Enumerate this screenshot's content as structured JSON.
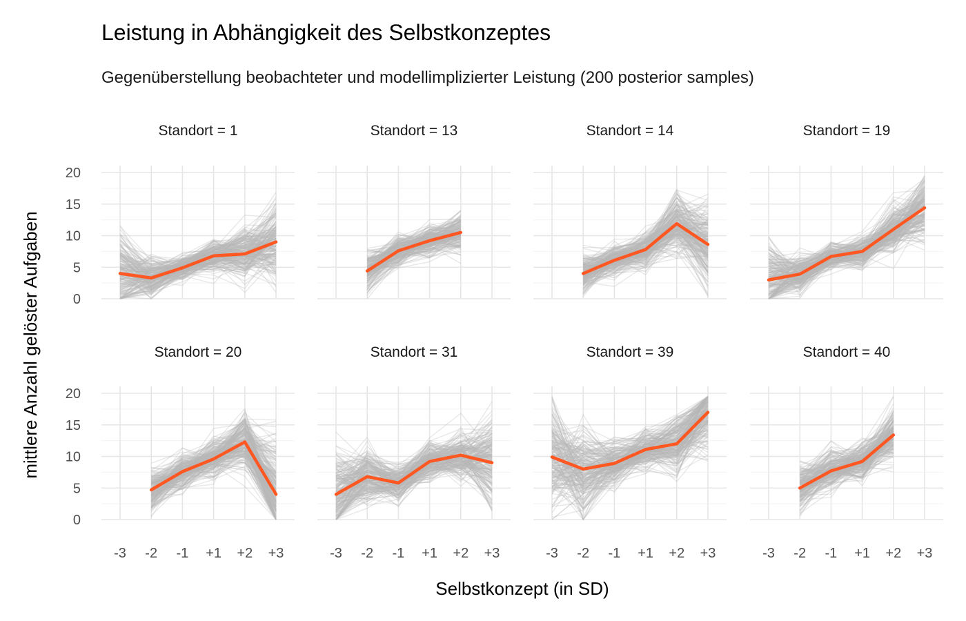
{
  "chart_data": {
    "type": "line",
    "title": "Leistung in Abhängigkeit des Selbstkonzeptes",
    "subtitle": "Gegenüberstellung beobachteter und modellimplizierter Leistung (200 posterior samples)",
    "xlabel": "Selbstkonzept (in SD)",
    "ylabel": "mittlere Anzahl gelöster Aufgaben",
    "x_categories": [
      "-3",
      "-2",
      "-1",
      "+1",
      "+2",
      "+3"
    ],
    "y_ticks": [
      0,
      5,
      10,
      15,
      20
    ],
    "ylim": [
      0,
      20
    ],
    "grid": true,
    "observed_color": "#ff5722",
    "sample_color": "#b8b8b8",
    "n_samples": 200,
    "facets": [
      {
        "label": "Standort = 1",
        "observed": [
          4.0,
          3.3,
          4.9,
          6.8,
          7.1,
          9.0
        ],
        "sample_spread": [
          3.8,
          1.8,
          1.2,
          1.6,
          2.2,
          3.8
        ]
      },
      {
        "label": "Standort = 13",
        "observed": [
          null,
          4.4,
          7.6,
          9.2,
          10.5,
          null
        ],
        "sample_spread": [
          null,
          1.8,
          1.4,
          1.4,
          1.8,
          null
        ]
      },
      {
        "label": "Standort = 14",
        "observed": [
          null,
          4.0,
          6.1,
          7.8,
          11.9,
          8.6
        ],
        "sample_spread": [
          null,
          1.8,
          1.4,
          1.6,
          2.6,
          4.0
        ]
      },
      {
        "label": "Standort = 19",
        "observed": [
          3.0,
          3.9,
          6.7,
          7.5,
          11.0,
          14.4
        ],
        "sample_spread": [
          3.4,
          1.8,
          1.2,
          1.4,
          2.2,
          3.2
        ]
      },
      {
        "label": "Standort = 20",
        "observed": [
          null,
          4.7,
          7.6,
          9.6,
          12.3,
          4.0
        ],
        "sample_spread": [
          null,
          2.0,
          1.6,
          1.8,
          2.6,
          5.2
        ]
      },
      {
        "label": "Standort = 31",
        "observed": [
          4.0,
          6.8,
          5.8,
          9.2,
          10.2,
          9.0
        ],
        "sample_spread": [
          4.0,
          2.4,
          1.6,
          1.8,
          2.2,
          4.4
        ]
      },
      {
        "label": "Standort = 39",
        "observed": [
          9.9,
          8.0,
          8.9,
          11.1,
          12.0,
          17.0
        ],
        "sample_spread": [
          5.4,
          4.0,
          2.0,
          1.8,
          2.6,
          4.0
        ]
      },
      {
        "label": "Standort = 40",
        "observed": [
          null,
          5.0,
          7.7,
          9.2,
          13.4,
          null
        ],
        "sample_spread": [
          null,
          2.2,
          1.8,
          1.8,
          2.4,
          null
        ]
      }
    ]
  }
}
